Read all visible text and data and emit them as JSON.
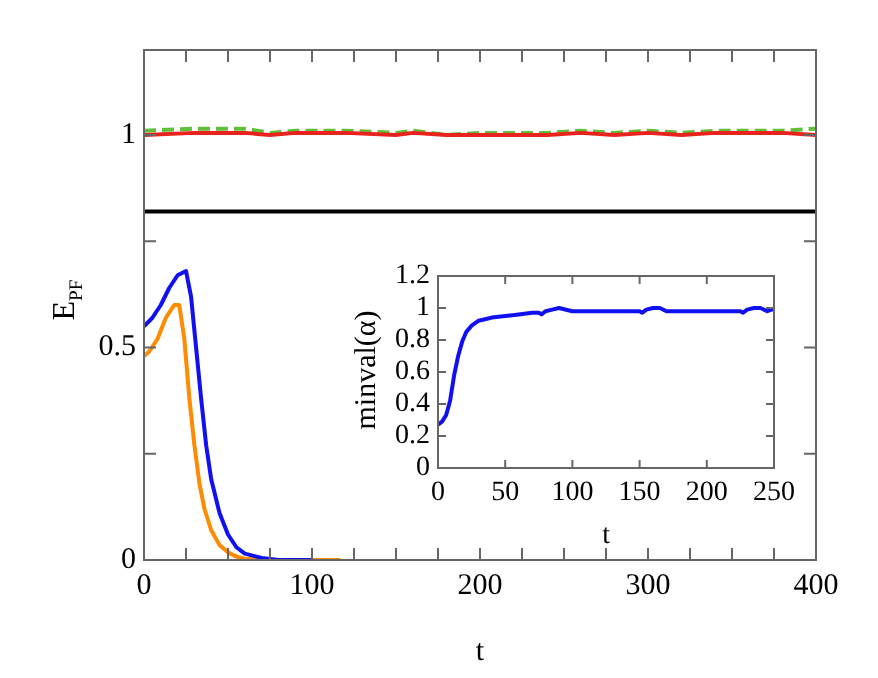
{
  "chart_data": [
    {
      "type": "line",
      "xlabel": "t",
      "ylabel": "E$_{PF}$",
      "xlim": [
        0,
        400
      ],
      "ylim": [
        0,
        1.2
      ],
      "xticks": [
        0,
        {
          "value": 25,
          "label": null
        },
        {
          "value": 50,
          "label": null
        },
        {
          "value": 75,
          "label": null
        },
        100,
        {
          "value": 125,
          "label": null
        },
        {
          "value": 150,
          "label": null
        },
        {
          "value": 175,
          "label": null
        },
        200,
        {
          "value": 225,
          "label": null
        },
        {
          "value": 250,
          "label": null
        },
        {
          "value": 275,
          "label": null
        },
        300,
        {
          "value": 325,
          "label": null
        },
        {
          "value": 350,
          "label": null
        },
        {
          "value": 375,
          "label": null
        },
        400
      ],
      "yticks": [
        0,
        {
          "value": 0.25,
          "label": null
        },
        0.5,
        {
          "value": 0.75,
          "label": null
        },
        1
      ],
      "grid": false,
      "legend": false,
      "marker": "none",
      "series": [
        {
          "color": "#000000",
          "line_style": "solid",
          "x": [
            0,
            50,
            100,
            150,
            200,
            250,
            300,
            350,
            400
          ],
          "values": [
            0.82,
            0.82,
            0.82,
            0.82,
            0.82,
            0.82,
            0.82,
            0.82,
            0.82
          ]
        },
        {
          "color": "#e8231d",
          "line_style": "solid",
          "x": [
            0,
            30,
            60,
            75,
            90,
            120,
            150,
            160,
            180,
            200,
            220,
            240,
            260,
            280,
            300,
            320,
            340,
            360,
            380,
            400
          ],
          "values": [
            1.0,
            1.005,
            1.005,
            1.0,
            1.005,
            1.005,
            1.0,
            1.005,
            1.0,
            1.0,
            1.0,
            1.0,
            1.005,
            1.0,
            1.005,
            1.0,
            1.005,
            1.005,
            1.005,
            1.0
          ]
        },
        {
          "color": "#5fbf3a",
          "line_style": "dashed",
          "x": [
            0,
            30,
            60,
            75,
            90,
            120,
            150,
            160,
            180,
            200,
            220,
            240,
            260,
            280,
            300,
            320,
            340,
            360,
            380,
            400
          ],
          "values": [
            1.01,
            1.015,
            1.015,
            1.005,
            1.01,
            1.01,
            1.005,
            1.01,
            1.0,
            1.005,
            1.005,
            1.005,
            1.01,
            1.005,
            1.01,
            1.005,
            1.01,
            1.01,
            1.01,
            1.015
          ]
        },
        {
          "color": "#1010f0",
          "line_style": "solid",
          "x": [
            0,
            5,
            10,
            15,
            20,
            25,
            28,
            31,
            34,
            37,
            40,
            45,
            50,
            55,
            60,
            70,
            80,
            100
          ],
          "values": [
            0.55,
            0.57,
            0.6,
            0.64,
            0.67,
            0.68,
            0.62,
            0.5,
            0.38,
            0.27,
            0.19,
            0.11,
            0.06,
            0.03,
            0.015,
            0.005,
            0.0,
            0.0
          ]
        },
        {
          "color": "#ff8c00",
          "line_style": "solid",
          "x": [
            0,
            3,
            8,
            13,
            18,
            21,
            24,
            27,
            30,
            33,
            36,
            40,
            45,
            50,
            55,
            60,
            70,
            90,
            117
          ],
          "values": [
            0.48,
            0.49,
            0.52,
            0.57,
            0.6,
            0.6,
            0.52,
            0.38,
            0.27,
            0.18,
            0.12,
            0.07,
            0.035,
            0.018,
            0.008,
            0.003,
            0.0,
            0.0,
            0.0
          ]
        }
      ]
    },
    {
      "type": "line",
      "xlabel": "t",
      "ylabel": "minval(α)",
      "xlim": [
        0,
        250
      ],
      "ylim": [
        0,
        1.2
      ],
      "xticks": [
        0,
        50,
        100,
        150,
        200,
        250
      ],
      "yticks": [
        0,
        0.2,
        0.4,
        0.6,
        0.8,
        1,
        1.2
      ],
      "grid": false,
      "legend": false,
      "marker": "none",
      "series": [
        {
          "color": "#1010f0",
          "line_style": "solid",
          "x": [
            0,
            3,
            6,
            9,
            12,
            15,
            18,
            21,
            25,
            30,
            35,
            40,
            50,
            60,
            70,
            75,
            77,
            80,
            85,
            90,
            100,
            120,
            140,
            150,
            152,
            155,
            160,
            165,
            170,
            190,
            210,
            225,
            227,
            230,
            235,
            240,
            245,
            248,
            250
          ],
          "values": [
            0.27,
            0.29,
            0.33,
            0.42,
            0.58,
            0.7,
            0.79,
            0.85,
            0.89,
            0.92,
            0.93,
            0.94,
            0.95,
            0.96,
            0.97,
            0.97,
            0.96,
            0.98,
            0.99,
            1.0,
            0.98,
            0.98,
            0.98,
            0.98,
            0.97,
            0.99,
            1.0,
            1.0,
            0.98,
            0.98,
            0.98,
            0.98,
            0.97,
            0.99,
            1.0,
            1.0,
            0.98,
            0.99,
            0.99
          ]
        }
      ]
    }
  ]
}
